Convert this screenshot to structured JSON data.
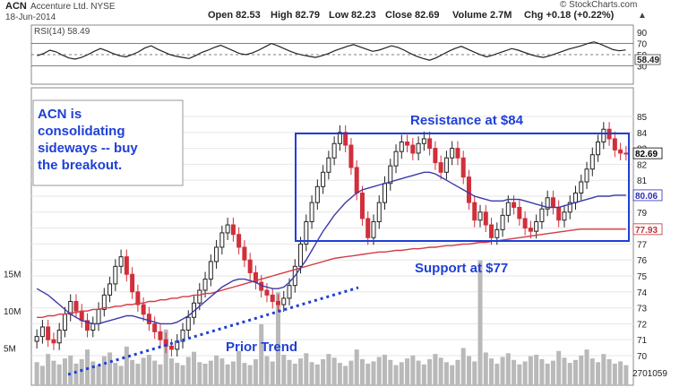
{
  "header": {
    "ticker": "ACN",
    "company": "Accenture Ltd. NYSE",
    "date": "18-Jun-2014",
    "open": "Open 82.53",
    "high": "High 82.79",
    "low": "Low 82.23",
    "close": "Close 82.69",
    "volume": "Volume 2.7M",
    "change": "Chg +0.18 (+0.22%)",
    "source": "© StockCharts.com"
  },
  "rsi": {
    "label": "RSI(14) 58.49",
    "ticks": [
      "90",
      "70",
      "50",
      "30"
    ],
    "last": "58.49",
    "levels": [
      70,
      30
    ],
    "series": [
      48,
      52,
      58,
      55,
      49,
      44,
      42,
      45,
      50,
      56,
      61,
      57,
      52,
      48,
      46,
      50,
      55,
      62,
      66,
      60,
      55,
      50,
      47,
      45,
      43,
      48,
      54,
      58,
      63,
      67,
      62,
      57,
      52,
      50,
      53,
      58,
      64,
      70,
      66,
      61,
      56,
      52,
      49,
      47,
      45,
      48,
      52,
      57,
      61,
      65,
      68,
      64,
      60,
      56,
      58,
      62,
      66,
      63,
      58,
      52,
      47,
      43,
      40,
      44,
      50,
      56,
      61,
      65,
      60,
      55,
      50,
      46,
      49,
      53,
      57,
      61,
      58,
      54,
      50,
      47,
      45,
      48,
      52,
      56,
      60,
      63,
      66,
      70,
      73,
      69,
      64,
      59,
      57,
      58.49
    ]
  },
  "price_axis": {
    "ticks": [
      "85",
      "84",
      "83",
      "82",
      "81",
      "80",
      "79",
      "78",
      "77",
      "76",
      "75",
      "74",
      "73",
      "72",
      "71",
      "70"
    ],
    "last_labels": [
      {
        "text": "82.69",
        "color": "#000000"
      },
      {
        "text": "80.06",
        "color": "#2b2bb8"
      },
      {
        "text": "77.93",
        "color": "#c0303a"
      }
    ]
  },
  "volume_axis": {
    "ticks": [
      "15M",
      "10M",
      "5M"
    ],
    "last": "2701059"
  },
  "annotations": {
    "note": [
      "ACN is",
      "consolidating",
      "sideways -- buy",
      "the breakout."
    ],
    "resistance": "Resistance at $84",
    "support": "Support at $77",
    "trend": "Prior Trend"
  },
  "colors": {
    "up": "#222222",
    "down": "#d12f3a",
    "ma50": "#3a3aa8",
    "ma200": "#d23c46",
    "annotation": "#1f3fd6"
  },
  "chart_data": {
    "type": "candlestick",
    "title": "ACN Accenture Ltd. NYSE",
    "ylim": [
      70,
      85
    ],
    "close": [
      71.2,
      71.8,
      71.0,
      70.8,
      71.6,
      72.6,
      73.4,
      72.8,
      72.2,
      71.6,
      72.0,
      72.9,
      73.8,
      74.5,
      75.6,
      76.2,
      75.1,
      74.0,
      73.2,
      72.6,
      72.0,
      71.5,
      71.0,
      70.6,
      70.4,
      70.9,
      71.6,
      72.4,
      73.3,
      74.1,
      74.8,
      75.9,
      76.8,
      77.7,
      78.2,
      77.6,
      76.8,
      76.0,
      75.2,
      74.6,
      74.1,
      73.8,
      73.4,
      73.2,
      73.6,
      74.4,
      75.6,
      77.0,
      78.4,
      79.6,
      80.6,
      81.5,
      82.4,
      83.3,
      84.0,
      83.2,
      81.8,
      80.2,
      78.6,
      77.4,
      78.4,
      79.6,
      80.8,
      81.9,
      82.8,
      83.4,
      83.2,
      82.7,
      83.3,
      83.6,
      83.0,
      82.1,
      81.5,
      82.4,
      83.0,
      82.4,
      81.2,
      79.6,
      78.5,
      79.0,
      78.2,
      77.4,
      77.9,
      78.8,
      79.6,
      79.3,
      78.6,
      78.0,
      77.8,
      78.4,
      79.2,
      79.9,
      79.3,
      78.5,
      79.0,
      79.6,
      80.2,
      80.9,
      81.7,
      82.6,
      83.4,
      84.2,
      83.6,
      82.9,
      82.7,
      82.69
    ],
    "ma50": [
      74.2,
      74.0,
      73.8,
      73.5,
      73.2,
      72.9,
      72.6,
      72.4,
      72.2,
      72.1,
      72.0,
      72.0,
      72.1,
      72.2,
      72.3,
      72.4,
      72.5,
      72.5,
      72.4,
      72.3,
      72.2,
      72.1,
      72.0,
      72.0,
      72.0,
      72.1,
      72.3,
      72.5,
      72.8,
      73.1,
      73.4,
      73.7,
      74.0,
      74.3,
      74.5,
      74.7,
      74.8,
      74.8,
      74.7,
      74.6,
      74.4,
      74.3,
      74.2,
      74.2,
      74.3,
      74.6,
      75.0,
      75.5,
      76.0,
      76.6,
      77.2,
      77.8,
      78.3,
      78.8,
      79.2,
      79.6,
      79.9,
      80.2,
      80.4,
      80.5,
      80.6,
      80.7,
      80.8,
      80.9,
      81.0,
      81.1,
      81.2,
      81.3,
      81.4,
      81.5,
      81.5,
      81.4,
      81.2,
      81.0,
      80.8,
      80.6,
      80.4,
      80.2,
      80.0,
      79.9,
      79.8,
      79.7,
      79.7,
      79.7,
      79.8,
      79.8,
      79.8,
      79.7,
      79.6,
      79.5,
      79.4,
      79.3,
      79.3,
      79.3,
      79.4,
      79.5,
      79.6,
      79.7,
      79.8,
      79.9,
      80.0,
      80.0,
      80.0,
      80.06,
      80.06,
      80.06
    ],
    "ma200": [
      72.4,
      72.4,
      72.5,
      72.5,
      72.6,
      72.6,
      72.7,
      72.7,
      72.8,
      72.8,
      72.9,
      72.9,
      73.0,
      73.0,
      73.1,
      73.1,
      73.2,
      73.2,
      73.3,
      73.3,
      73.4,
      73.4,
      73.5,
      73.5,
      73.6,
      73.6,
      73.7,
      73.7,
      73.8,
      73.8,
      73.9,
      73.9,
      74.0,
      74.1,
      74.2,
      74.3,
      74.4,
      74.5,
      74.6,
      74.7,
      74.8,
      74.9,
      75.0,
      75.1,
      75.2,
      75.3,
      75.4,
      75.5,
      75.6,
      75.7,
      75.8,
      75.9,
      76.0,
      76.1,
      76.15,
      76.2,
      76.25,
      76.3,
      76.35,
      76.4,
      76.45,
      76.5,
      76.5,
      76.55,
      76.6,
      76.6,
      76.65,
      76.7,
      76.7,
      76.75,
      76.8,
      76.8,
      76.85,
      76.9,
      76.9,
      76.95,
      77.0,
      77.0,
      77.05,
      77.1,
      77.1,
      77.15,
      77.2,
      77.25,
      77.3,
      77.35,
      77.4,
      77.45,
      77.5,
      77.55,
      77.6,
      77.65,
      77.7,
      77.75,
      77.8,
      77.85,
      77.9,
      77.93,
      77.93,
      77.93,
      77.93,
      77.93,
      77.93,
      77.93,
      77.93,
      77.93
    ],
    "volume_m": [
      3.1,
      2.6,
      4.2,
      3.3,
      2.8,
      3.6,
      4.0,
      2.9,
      3.5,
      4.8,
      3.2,
      2.7,
      3.9,
      4.4,
      3.0,
      2.6,
      5.2,
      3.4,
      2.9,
      3.7,
      4.1,
      3.3,
      2.8,
      7.5,
      3.6,
      3.0,
      2.7,
      3.8,
      4.5,
      3.1,
      2.9,
      3.3,
      4.0,
      3.6,
      2.8,
      3.2,
      4.6,
      3.0,
      2.7,
      3.5,
      8.2,
      3.9,
      3.2,
      12.5,
      4.1,
      3.4,
      2.9,
      3.6,
      4.3,
      3.1,
      2.8,
      3.5,
      4.2,
      3.7,
      3.0,
      2.6,
      3.3,
      4.8,
      3.5,
      2.9,
      3.2,
      3.8,
      4.1,
      3.4,
      2.7,
      3.1,
      3.6,
      4.0,
      3.3,
      2.8,
      3.5,
      4.2,
      3.7,
      3.1,
      2.7,
      3.4,
      5.0,
      3.9,
      3.2,
      16.8,
      4.4,
      3.6,
      2.9,
      3.8,
      4.3,
      3.4,
      2.8,
      3.2,
      3.9,
      4.1,
      3.5,
      2.9,
      3.3,
      4.6,
      3.7,
      3.0,
      3.4,
      4.0,
      4.8,
      3.6,
      3.1,
      4.2,
      3.5,
      2.9,
      3.2,
      2.7
    ]
  }
}
